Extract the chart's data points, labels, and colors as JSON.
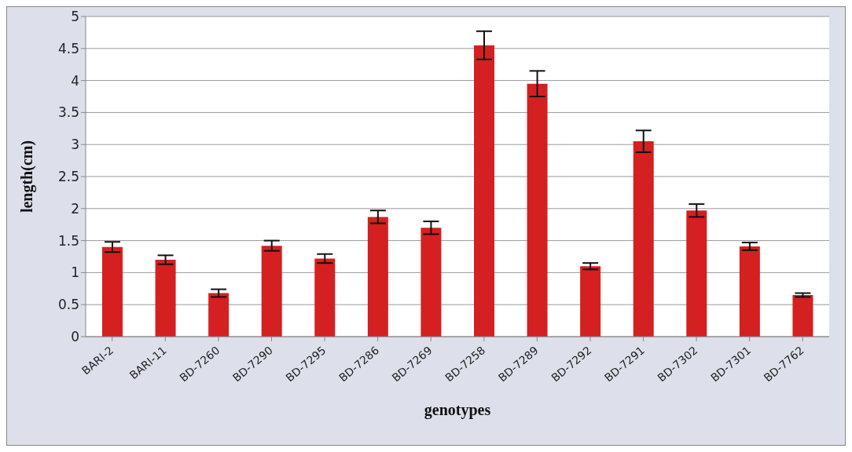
{
  "chart_data": {
    "type": "bar",
    "xlabel": "genotypes",
    "ylabel": "length(cm)",
    "categories": [
      "BARI-2",
      "BARI-11",
      "BD-7260",
      "BD-7290",
      "BD-7295",
      "BD-7286",
      "BD-7269",
      "BD-7258",
      "BD-7289",
      "BD-7292",
      "BD-7291",
      "BD-7302",
      "BD-7301",
      "BD-7762"
    ],
    "values": [
      1.4,
      1.2,
      0.68,
      1.42,
      1.22,
      1.87,
      1.7,
      4.55,
      3.95,
      1.1,
      3.05,
      1.97,
      1.41,
      0.65
    ],
    "errors": [
      0.08,
      0.07,
      0.06,
      0.08,
      0.07,
      0.1,
      0.1,
      0.22,
      0.2,
      0.05,
      0.17,
      0.1,
      0.06,
      0.03
    ],
    "color": "#d42020",
    "ylim": [
      0,
      5
    ],
    "yticks": [
      0,
      0.5,
      1,
      1.5,
      2,
      2.5,
      3,
      3.5,
      4,
      4.5,
      5
    ],
    "grid": "y",
    "legend": false
  }
}
